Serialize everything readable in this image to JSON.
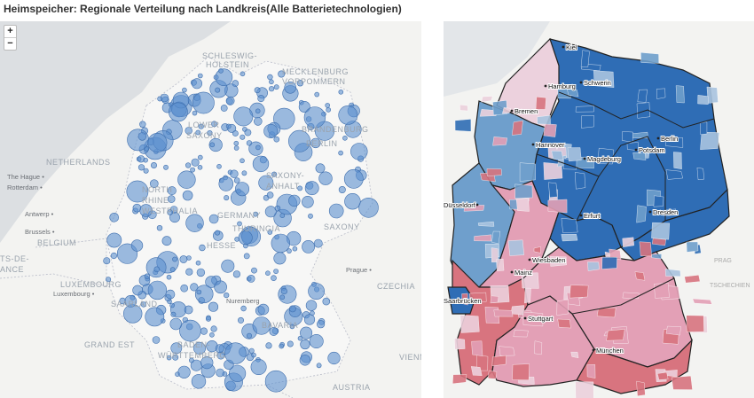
{
  "title": "Heimspeicher: Regionale Verteilung nach Landkreis(Alle Batterietechnologien)",
  "zoom": {
    "in": "+",
    "out": "−"
  },
  "left_map": {
    "labels": [
      "SCHLESWIG-",
      "HOLSTEIN",
      "MECKLENBURG",
      "VORPOMMERN",
      "LOWER",
      "SAXONY",
      "BRANDENBURG",
      "BERLIN",
      "NETHERLANDS",
      "The Hague •",
      "Rotterdam •",
      "NORTH",
      "RHINE-",
      "WESTPHALIA",
      "SAXONY-",
      "ANHALT",
      "GERMANY",
      "THURINGIA",
      "SAXONY",
      "Antwerp •",
      "Brussels •",
      "BELGIUM",
      "HESSE",
      "Prague •",
      "TS-DE-",
      "ANCE",
      "LUXEMBOURG",
      "Luxembourg •",
      "CZECHIA",
      "SAARLAND",
      "Nuremberg",
      "BAVARIA",
      "GRAND EST",
      "BADEN-",
      "WÜRTTEMBERG",
      "VIENN",
      "AUSTRIA"
    ]
  },
  "right_map": {
    "cities": [
      "Kiel",
      "Hamburg",
      "Schwerin",
      "Bremen",
      "Hannover",
      "Magdeburg",
      "Berlin",
      "Potsdam",
      "Düsseldorf",
      "Erfurt",
      "Dresden",
      "Wiesbaden",
      "Mainz",
      "Saarbrücken",
      "Stuttgart",
      "München"
    ],
    "labels": [
      "PRAG",
      "TSCHECHIEN"
    ],
    "colors": {
      "dark_blue": "#2f6db5",
      "mid_blue": "#6f9fcc",
      "light_blue": "#a9c4e0",
      "light_pink": "#ecd1dd",
      "pink": "#e3a0b6",
      "red": "#d8747f"
    }
  }
}
